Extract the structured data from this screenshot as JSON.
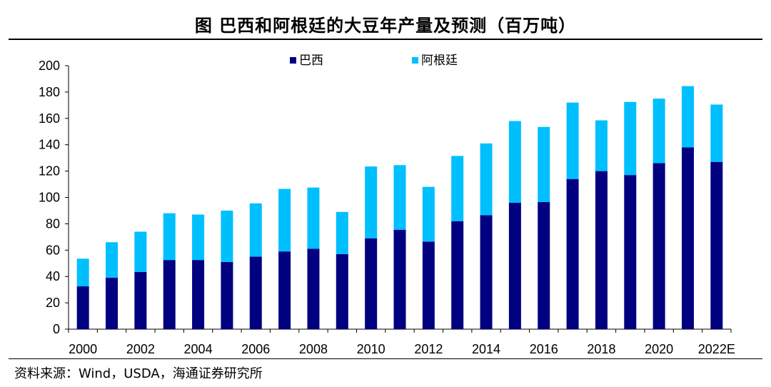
{
  "title": "图  巴西和阿根廷的大豆年产量及预测（百万吨）",
  "source": "资料来源：Wind，USDA，海通证券研究所",
  "chart_data": {
    "type": "bar",
    "stacked": true,
    "title": "图  巴西和阿根廷的大豆年产量及预测（百万吨）",
    "xlabel": "",
    "ylabel": "",
    "ylim": [
      0,
      200
    ],
    "yticks": [
      0,
      20,
      40,
      60,
      80,
      100,
      120,
      140,
      160,
      180,
      200
    ],
    "categories": [
      "2000",
      "2001",
      "2002",
      "2003",
      "2004",
      "2005",
      "2006",
      "2007",
      "2008",
      "2009",
      "2010",
      "2011",
      "2012",
      "2013",
      "2014",
      "2015",
      "2016",
      "2017",
      "2018",
      "2019",
      "2020",
      "2021",
      "2022E"
    ],
    "x_tick_labels": [
      "2000",
      "",
      "2002",
      "",
      "2004",
      "",
      "2006",
      "",
      "2008",
      "",
      "2010",
      "",
      "2012",
      "",
      "2014",
      "",
      "2016",
      "",
      "2018",
      "",
      "2020",
      "",
      "2022E"
    ],
    "legend_position": "top",
    "series": [
      {
        "name": "巴西",
        "color": "#000080",
        "values": [
          32.5,
          39,
          43.5,
          52.5,
          52.5,
          51,
          55,
          59,
          61,
          57,
          69,
          75.5,
          66.5,
          82,
          86.5,
          96,
          96.5,
          114,
          120,
          117,
          126,
          138,
          127
        ]
      },
      {
        "name": "阿根廷",
        "color": "#00BFFF",
        "values": [
          21,
          27,
          30.5,
          35.5,
          34.5,
          39,
          40.5,
          47.5,
          46.5,
          32,
          54.5,
          49,
          41.5,
          49.5,
          54.5,
          62,
          57,
          58,
          38.5,
          55.5,
          49,
          46.5,
          43.5
        ]
      }
    ]
  }
}
